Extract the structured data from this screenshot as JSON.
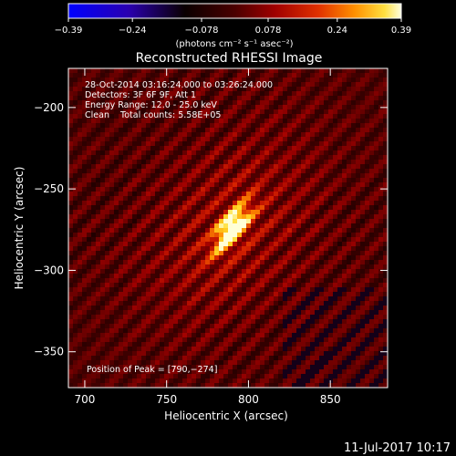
{
  "chart_data": {
    "type": "heatmap",
    "title": "Reconstructed RHESSI Image",
    "xlabel": "Heliocentric X (arcsec)",
    "ylabel": "Heliocentric Y (arcsec)",
    "xlim": [
      690,
      885
    ],
    "ylim": [
      -372,
      -176
    ],
    "x_ticks": [
      700,
      750,
      800,
      850
    ],
    "x_tick_labels": [
      "700",
      "750",
      "800",
      "850"
    ],
    "y_ticks": [
      -200,
      -250,
      -300,
      -350
    ],
    "y_tick_labels": [
      "−200",
      "−250",
      "−300",
      "−350"
    ],
    "colorbar": {
      "range": [
        -0.39,
        0.39
      ],
      "ticks": [
        -0.39,
        -0.24,
        -0.078,
        0.078,
        0.24,
        0.39
      ],
      "tick_labels": [
        "−0.39",
        "−0.24",
        "−0.078",
        "0.078",
        "0.24",
        "0.39"
      ],
      "units_label": "(photons cm⁻² s⁻¹ asec⁻²)",
      "colormap": [
        "#0000ff",
        "#2a00b0",
        "#000000",
        "#4a0000",
        "#a00000",
        "#e03000",
        "#ff9000",
        "#ffe040",
        "#ffffe0"
      ]
    },
    "info_lines": [
      "28-Oct-2014 03:16:24.000 to 03:26:24.000",
      "Detectors: 3F 6F 9F, Att 1",
      "Energy Range: 12.0 - 25.0 keV",
      "Clean    Total counts: 5.58E+05"
    ],
    "peak_label": "Position of Peak = [790,−274]",
    "peak": {
      "x": 790,
      "y": -274,
      "value": 0.39
    },
    "source": {
      "sigma_major": 12,
      "sigma_minor": 5,
      "angle_deg": 55
    },
    "grid": false,
    "legend": "none"
  },
  "footer": {
    "date_stamp": "11-Jul-2017 10:17"
  }
}
